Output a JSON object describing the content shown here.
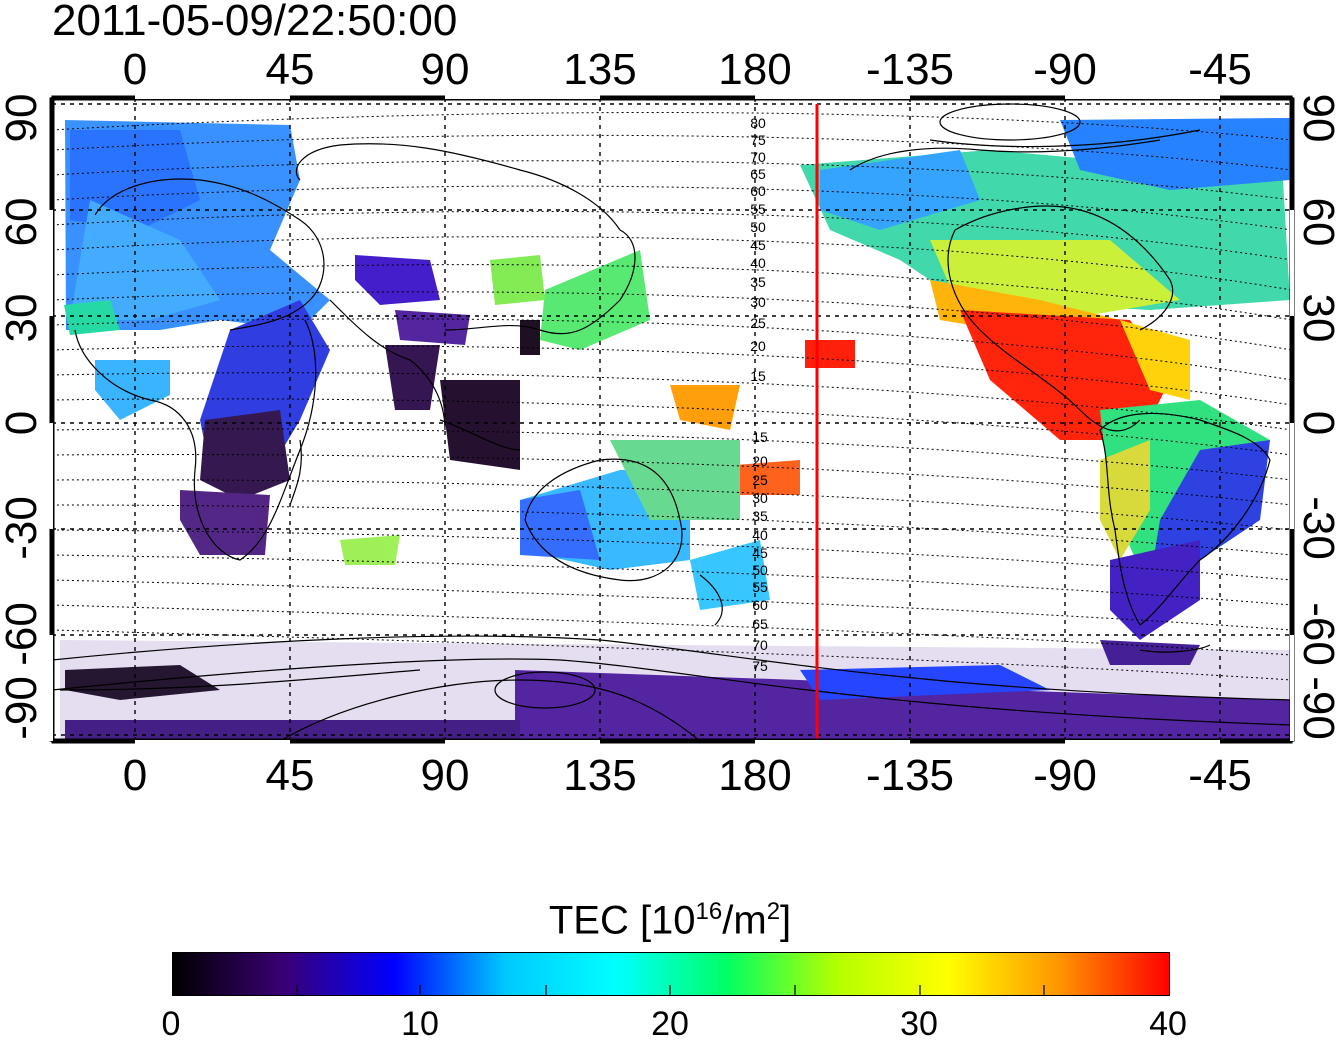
{
  "timestamp": "2011-05-09/22:50:00",
  "x_ticks": [
    "0",
    "45",
    "90",
    "135",
    "180",
    "-135",
    "-90",
    "-45"
  ],
  "y_ticks_left": [
    "90",
    "60",
    "30",
    "0",
    "-30",
    "-60",
    "-90"
  ],
  "y_ticks_right": [
    "90",
    "60",
    "30",
    "0",
    "-30",
    "-60",
    "-90"
  ],
  "contour_labels_north": [
    "80",
    "75",
    "70",
    "65",
    "60",
    "55",
    "50",
    "45",
    "40",
    "35",
    "30",
    "25",
    "20",
    "15"
  ],
  "contour_labels_south": [
    "15",
    "20",
    "25",
    "30",
    "35",
    "40",
    "45",
    "50",
    "55",
    "60",
    "65",
    "70",
    "75"
  ],
  "colorbar": {
    "title_main": "TEC  [10",
    "title_sup1": "16",
    "title_mid": "/m",
    "title_sup2": "2",
    "title_end": "]",
    "ticks": [
      "0",
      "10",
      "20",
      "30",
      "40"
    ],
    "colors": [
      "#000000",
      "#3a0075",
      "#0000ff",
      "#00c8ff",
      "#00ffff",
      "#00ff64",
      "#b4ff00",
      "#ffff00",
      "#ff9600",
      "#ff0000"
    ]
  },
  "terminator_color": "#ff0000"
}
